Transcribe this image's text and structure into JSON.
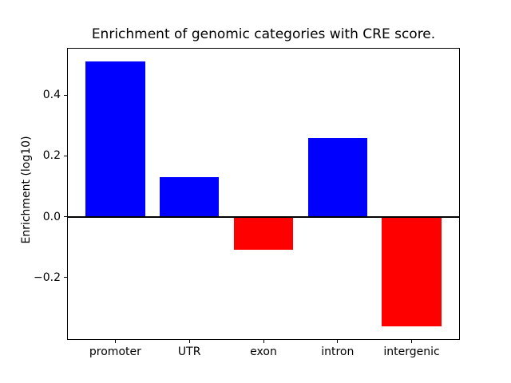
{
  "chart_data": {
    "type": "bar",
    "title": "Enrichment of genomic categories with CRE score.",
    "ylabel": "Enrichment (log10)",
    "categories": [
      "promoter",
      "UTR",
      "exon",
      "intron",
      "intergenic"
    ],
    "values": [
      0.51,
      0.13,
      -0.11,
      0.26,
      -0.36
    ],
    "bar_colors": [
      "#0000ff",
      "#0000ff",
      "#ff0000",
      "#0000ff",
      "#ff0000"
    ],
    "positive_color": "#0000ff",
    "negative_color": "#ff0000",
    "bar_width": 0.8,
    "xlim": [
      -0.64,
      4.64
    ],
    "ylim": [
      -0.403,
      0.553
    ],
    "yticks": [
      {
        "value": 0.4,
        "label": "0.4"
      },
      {
        "value": 0.2,
        "label": "0.2"
      },
      {
        "value": 0.0,
        "label": "0.0"
      },
      {
        "value": -0.2,
        "label": "−0.2"
      }
    ],
    "zero_line": true,
    "grid": false,
    "legend_position": "none"
  }
}
